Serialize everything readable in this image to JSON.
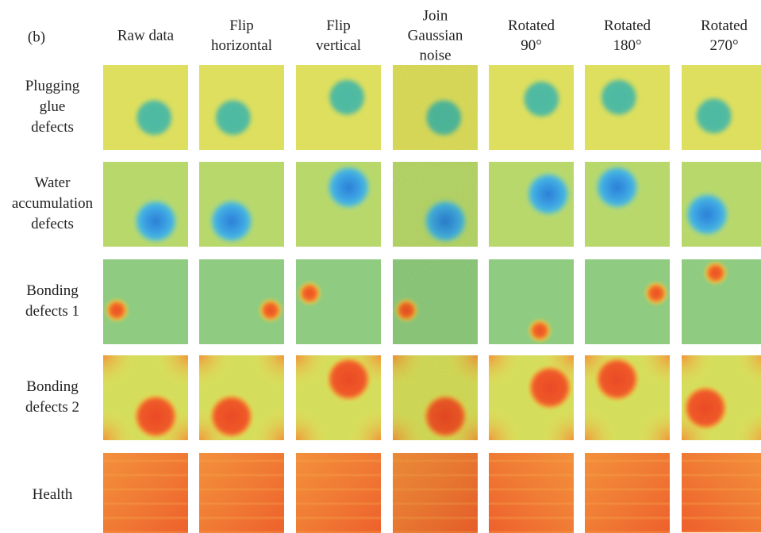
{
  "panel_label": "(b)",
  "columns": [
    [
      "Raw data"
    ],
    [
      "Flip",
      "horizontal"
    ],
    [
      "Flip",
      "vertical"
    ],
    [
      "Join",
      "Gaussian",
      "noise"
    ],
    [
      "Rotated",
      "90°"
    ],
    [
      "Rotated",
      "180°"
    ],
    [
      "Rotated",
      "270°"
    ]
  ],
  "rows": [
    [
      "Plugging",
      "glue",
      "defects"
    ],
    [
      "Water",
      "accumulation",
      "defects"
    ],
    [
      "Bonding",
      "defects 1"
    ],
    [
      "Bonding",
      "defects 2"
    ],
    [
      "Health"
    ]
  ]
}
